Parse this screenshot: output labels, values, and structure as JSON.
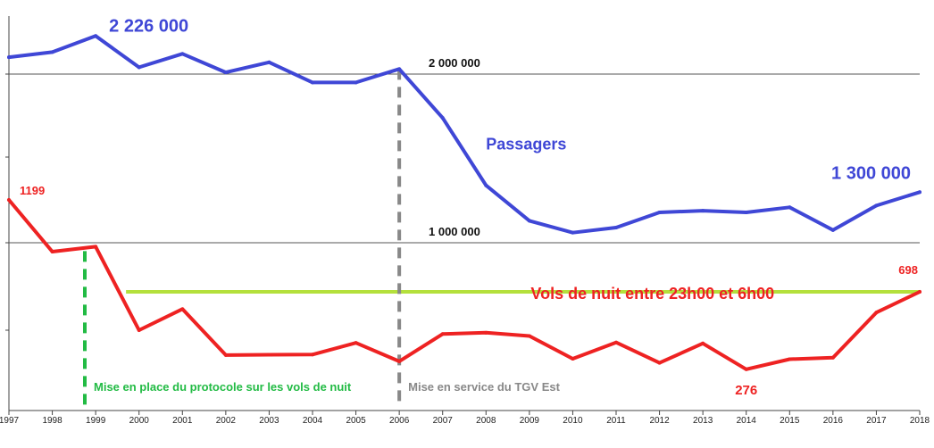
{
  "chart_data": {
    "type": "line",
    "x": [
      1997,
      1998,
      1999,
      2000,
      2001,
      2002,
      2003,
      2004,
      2005,
      2006,
      2007,
      2008,
      2009,
      2010,
      2011,
      2012,
      2013,
      2014,
      2015,
      2016,
      2017,
      2018
    ],
    "series": [
      {
        "name": "Passagers",
        "color": "#3f47d6",
        "unit": "passagers",
        "values": [
          2100000,
          2130000,
          2226000,
          2040000,
          2120000,
          2010000,
          2070000,
          1950000,
          1950000,
          2030000,
          1740000,
          1340000,
          1130000,
          1060000,
          1090000,
          1180000,
          1190000,
          1180000,
          1210000,
          1075000,
          1220000,
          1300000
        ]
      },
      {
        "name": "Vols de nuit entre 23h00 et 6h00",
        "color": "#ee2222",
        "unit": "vols",
        "values": [
          1199,
          917,
          944,
          489,
          604,
          353,
          355,
          356,
          420,
          319,
          468,
          475,
          457,
          333,
          422,
          311,
          417,
          276,
          331,
          339,
          585,
          698
        ]
      }
    ],
    "reference_lines": [
      {
        "label": "2 000 000",
        "value": 2000000,
        "color": "#555555"
      },
      {
        "label": "1 000 000",
        "value": 1000000,
        "color": "#555555"
      }
    ],
    "protocol_level": {
      "value": 698,
      "from": 1999.7,
      "to": 2018,
      "color": "#b4e03c"
    },
    "events": [
      {
        "x": 1998.75,
        "label": "Mise en place du protocole sur les vols de nuit",
        "color": "#22bb44"
      },
      {
        "x": 2006,
        "label": "Mise en service du TGV Est",
        "color": "#888888"
      }
    ],
    "annotations": [
      {
        "series": 0,
        "x": 1999,
        "text": "2 226 000",
        "color": "#3f47d6"
      },
      {
        "series": 0,
        "x": 2008,
        "text": "Passagers",
        "color": "#3f47d6"
      },
      {
        "series": 0,
        "x": 2018,
        "text": "1 300 000",
        "color": "#3f47d6"
      },
      {
        "series": 1,
        "x": 1997,
        "text": "1199",
        "color": "#ee2222"
      },
      {
        "series": 1,
        "x": 2018,
        "text": "698",
        "color": "#ee2222"
      },
      {
        "series": 1,
        "x": 2014,
        "text": "276",
        "color": "#ee2222"
      },
      {
        "series": 1,
        "x": 2010,
        "text": "Vols de nuit entre 23h00 et 6h00",
        "color": "#ee2222"
      }
    ],
    "xlim": [
      1997,
      2018
    ],
    "grid": false
  }
}
